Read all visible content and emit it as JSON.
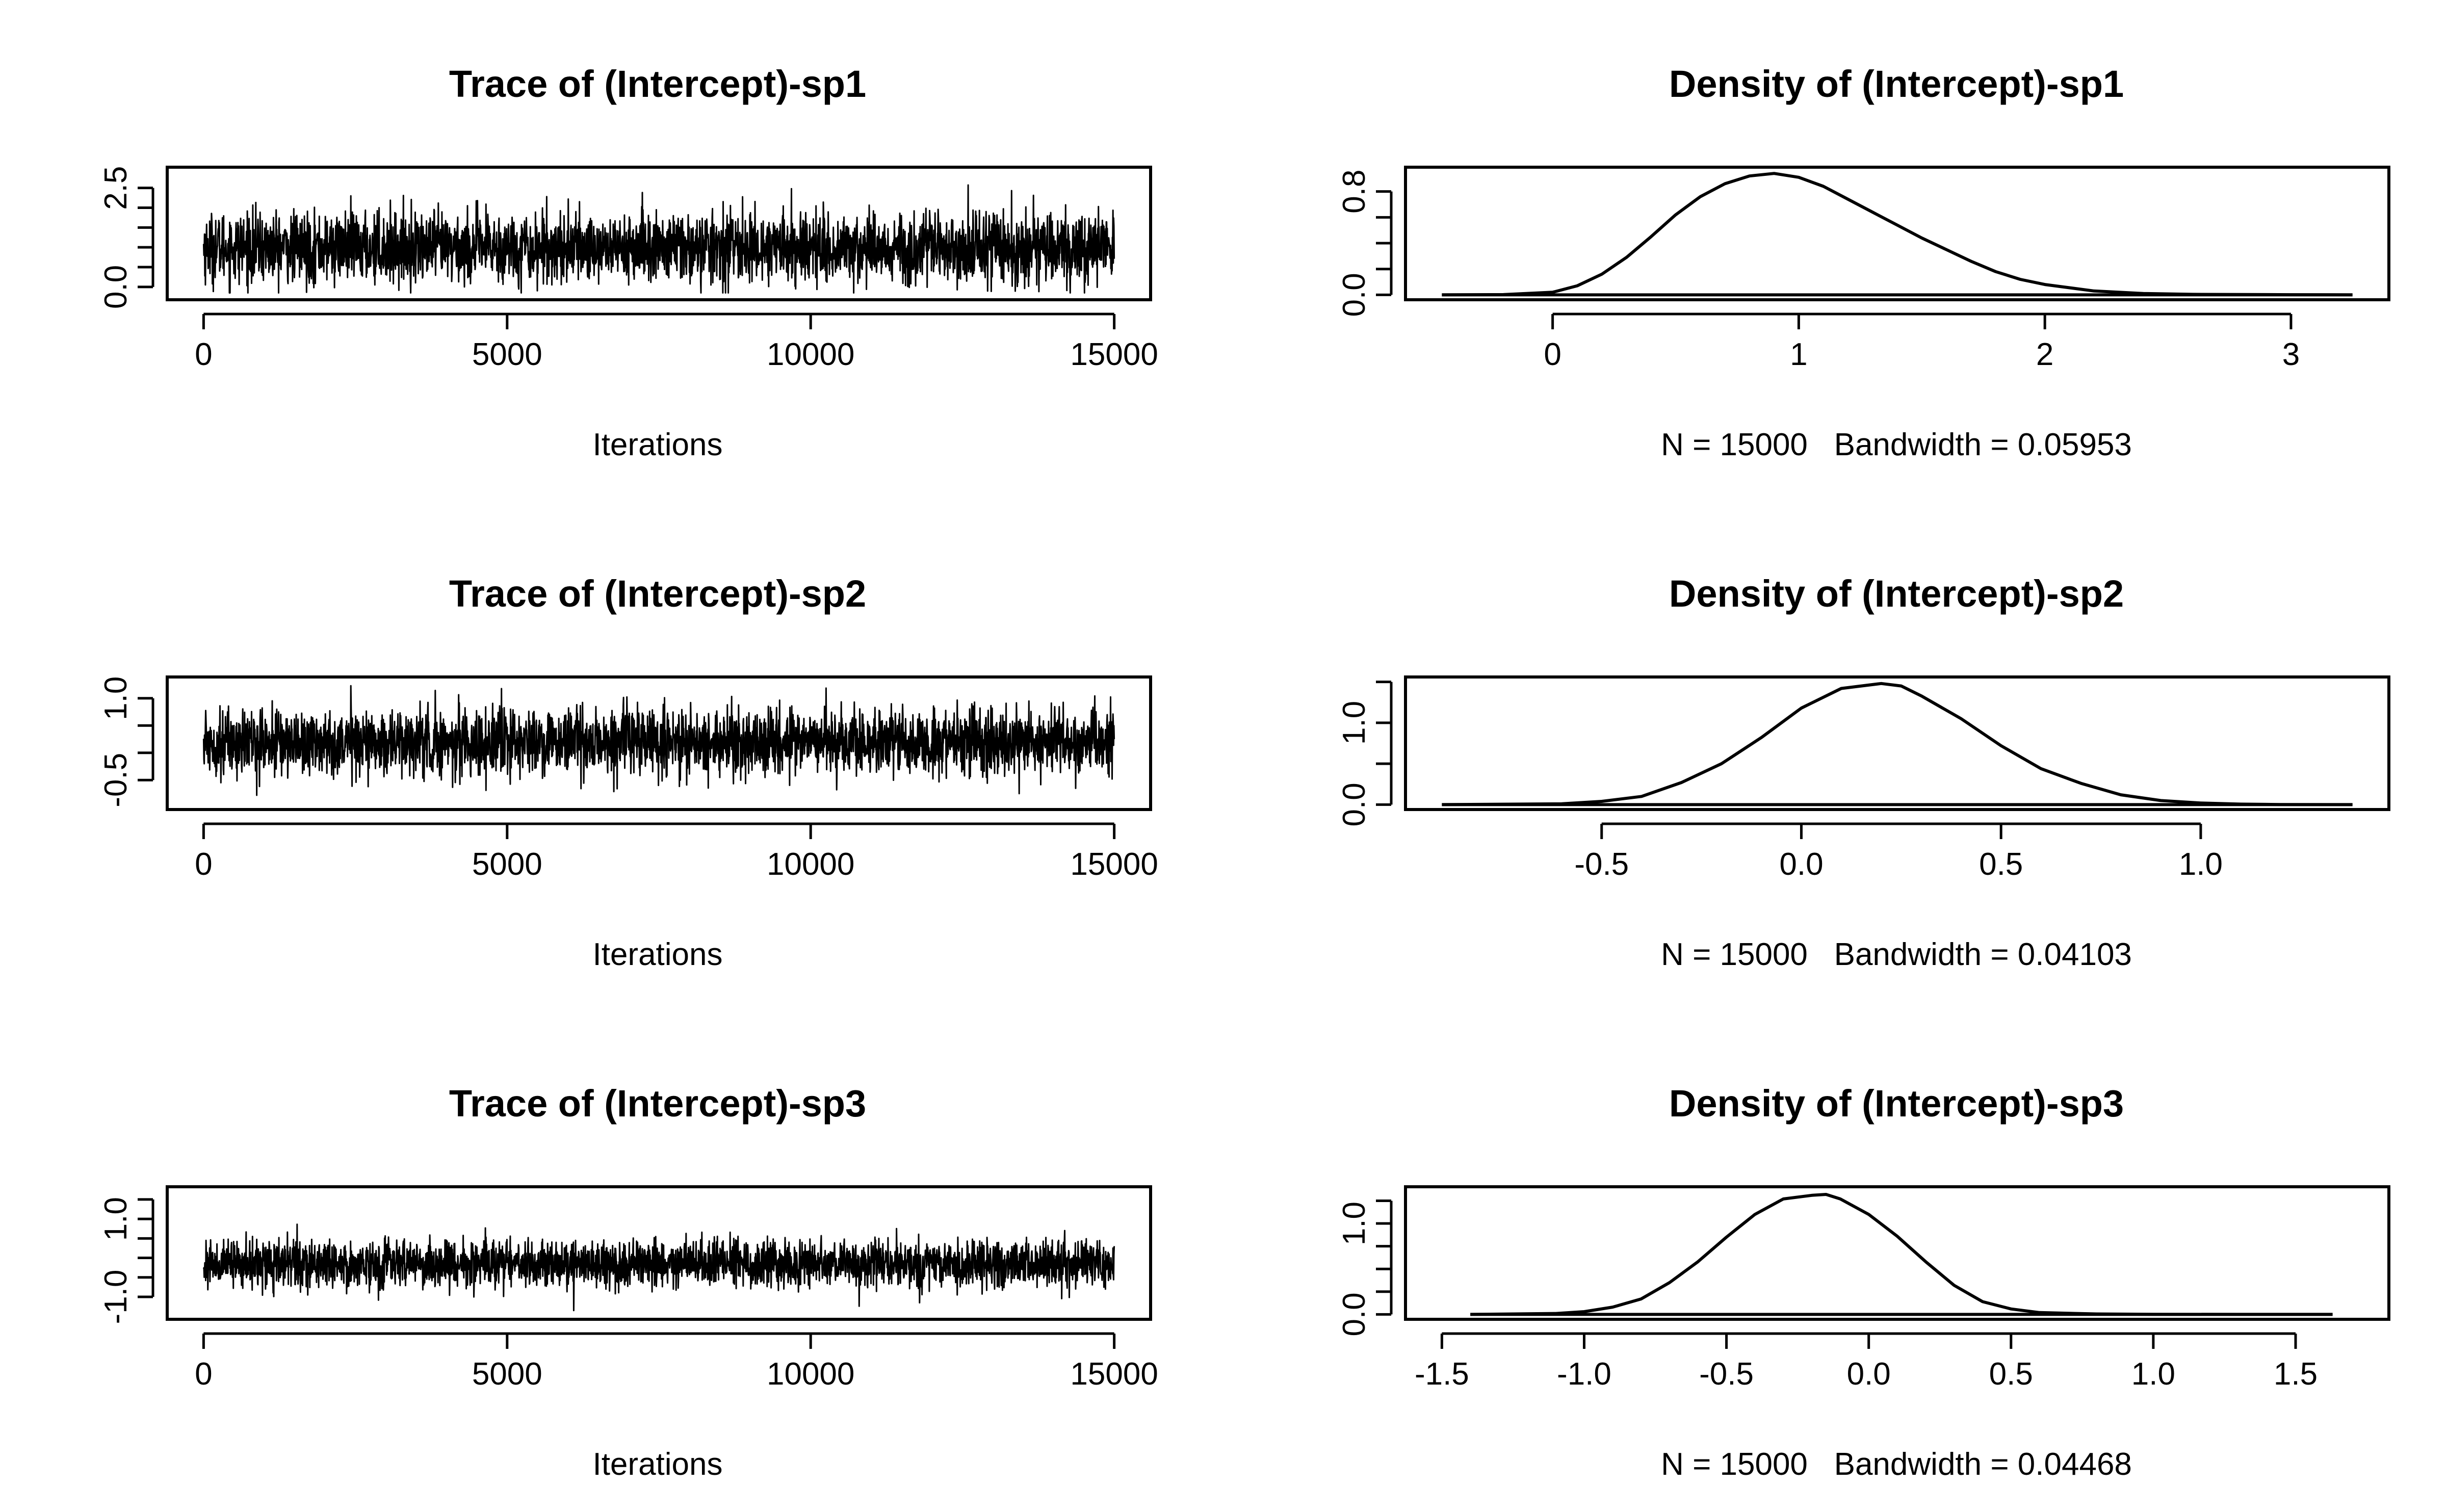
{
  "chart_data": [
    {
      "type": "line",
      "kind": "trace",
      "title": "Trace of (Intercept)-sp1",
      "xlabel": "Iterations",
      "xlim": [
        0,
        15000
      ],
      "ylim": [
        -0.2,
        2.9
      ],
      "x_ticks": [
        "0",
        "5000",
        "10000",
        "15000"
      ],
      "y_ticks": [
        "0.0",
        "2.5"
      ],
      "y_label_ticks": [
        0.0,
        2.5
      ],
      "y_minor_ticks": [
        0.0,
        0.5,
        1.0,
        1.5,
        2.0,
        2.5
      ],
      "series_summary": {
        "mean": 0.99,
        "sd": 0.44,
        "min": -0.15,
        "max": 2.85,
        "n": 15000
      }
    },
    {
      "type": "line",
      "kind": "density",
      "title": "Density of (Intercept)-sp1",
      "xlabel": "N = 15000   Bandwidth = 0.05953",
      "xlim": [
        -0.45,
        3.25
      ],
      "ylim": [
        0,
        0.95
      ],
      "x_ticks": [
        "0",
        "1",
        "2",
        "3"
      ],
      "x_tick_values": [
        0,
        1,
        2,
        3
      ],
      "y_ticks": [
        "0.0",
        "0.8"
      ],
      "y_label_ticks": [
        0.0,
        0.8
      ],
      "y_minor_ticks": [
        0.0,
        0.2,
        0.4,
        0.6,
        0.8
      ],
      "x": [
        -0.45,
        -0.2,
        0.0,
        0.1,
        0.2,
        0.3,
        0.4,
        0.5,
        0.6,
        0.7,
        0.8,
        0.9,
        1.0,
        1.1,
        1.2,
        1.3,
        1.4,
        1.5,
        1.6,
        1.7,
        1.8,
        1.9,
        2.0,
        2.2,
        2.4,
        2.6,
        3.0,
        3.25
      ],
      "y": [
        0.0,
        0.002,
        0.02,
        0.07,
        0.16,
        0.29,
        0.45,
        0.62,
        0.76,
        0.86,
        0.92,
        0.94,
        0.91,
        0.84,
        0.74,
        0.64,
        0.54,
        0.44,
        0.35,
        0.26,
        0.18,
        0.12,
        0.08,
        0.03,
        0.01,
        0.004,
        0.001,
        0.0
      ]
    },
    {
      "type": "line",
      "kind": "trace",
      "title": "Trace of (Intercept)-sp2",
      "xlabel": "Iterations",
      "xlim": [
        0,
        15000
      ],
      "ylim": [
        -0.95,
        1.3
      ],
      "x_ticks": [
        "0",
        "5000",
        "10000",
        "15000"
      ],
      "y_ticks": [
        "-0.5",
        "1.0"
      ],
      "y_label_ticks": [
        -0.5,
        1.0
      ],
      "y_minor_ticks": [
        -0.5,
        0.0,
        0.5,
        1.0
      ],
      "series_summary": {
        "mean": 0.19,
        "sd": 0.3,
        "min": -0.9,
        "max": 1.25,
        "n": 15000
      }
    },
    {
      "type": "line",
      "kind": "density",
      "title": "Density of (Intercept)-sp2",
      "xlabel": "N = 15000   Bandwidth = 0.04103",
      "xlim": [
        -0.9,
        1.38
      ],
      "ylim": [
        0,
        1.5
      ],
      "x_ticks": [
        "-0.5",
        "0.0",
        "0.5",
        "1.0"
      ],
      "x_tick_values": [
        -0.5,
        0.0,
        0.5,
        1.0
      ],
      "y_ticks": [
        "0.0",
        "1.0"
      ],
      "y_label_ticks": [
        0.0,
        1.0
      ],
      "y_minor_ticks": [
        0.0,
        0.5,
        1.0,
        1.5
      ],
      "x": [
        -0.9,
        -0.6,
        -0.5,
        -0.4,
        -0.3,
        -0.2,
        -0.1,
        0.0,
        0.1,
        0.2,
        0.25,
        0.3,
        0.4,
        0.5,
        0.6,
        0.7,
        0.8,
        0.9,
        1.0,
        1.1,
        1.2,
        1.38
      ],
      "y": [
        0.0,
        0.01,
        0.04,
        0.1,
        0.27,
        0.5,
        0.82,
        1.18,
        1.42,
        1.48,
        1.45,
        1.33,
        1.05,
        0.72,
        0.44,
        0.26,
        0.12,
        0.05,
        0.02,
        0.006,
        0.001,
        0.0
      ]
    },
    {
      "type": "line",
      "kind": "trace",
      "title": "Trace of (Intercept)-sp3",
      "xlabel": "Iterations",
      "xlim": [
        0,
        15000
      ],
      "ylim": [
        -1.45,
        1.7
      ],
      "x_ticks": [
        "0",
        "5000",
        "10000",
        "15000"
      ],
      "y_ticks": [
        "-1.0",
        "1.0"
      ],
      "y_label_ticks": [
        -1.0,
        1.0
      ],
      "y_minor_ticks": [
        -1.0,
        -0.5,
        0.0,
        0.5,
        1.0,
        1.5
      ],
      "series_summary": {
        "mean": -0.15,
        "sd": 0.3,
        "min": -1.35,
        "max": 1.5,
        "n": 15000
      }
    },
    {
      "type": "line",
      "kind": "density",
      "title": "Density of (Intercept)-sp3",
      "xlabel": "N = 15000   Bandwidth = 0.04468",
      "xlim": [
        -1.5,
        1.7
      ],
      "ylim": [
        0,
        1.35
      ],
      "x_ticks": [
        "-1.5",
        "-1.0",
        "-0.5",
        "0.0",
        "0.5",
        "1.0",
        "1.5"
      ],
      "x_tick_values": [
        -1.5,
        -1.0,
        -0.5,
        0.0,
        0.5,
        1.0,
        1.5
      ],
      "y_ticks": [
        "0.0",
        "1.0"
      ],
      "y_label_ticks": [
        0.0,
        1.0
      ],
      "y_minor_ticks": [
        0.0,
        0.25,
        0.5,
        0.75,
        1.0,
        1.25
      ],
      "x": [
        -1.4,
        -1.1,
        -1.0,
        -0.9,
        -0.8,
        -0.7,
        -0.6,
        -0.5,
        -0.4,
        -0.3,
        -0.2,
        -0.15,
        -0.1,
        0.0,
        0.1,
        0.2,
        0.3,
        0.4,
        0.5,
        0.6,
        0.8,
        1.0,
        1.3,
        1.63
      ],
      "y": [
        0.0,
        0.01,
        0.03,
        0.08,
        0.17,
        0.35,
        0.58,
        0.85,
        1.1,
        1.27,
        1.31,
        1.32,
        1.27,
        1.1,
        0.86,
        0.58,
        0.32,
        0.14,
        0.06,
        0.02,
        0.005,
        0.001,
        0.0,
        0.0
      ]
    }
  ]
}
